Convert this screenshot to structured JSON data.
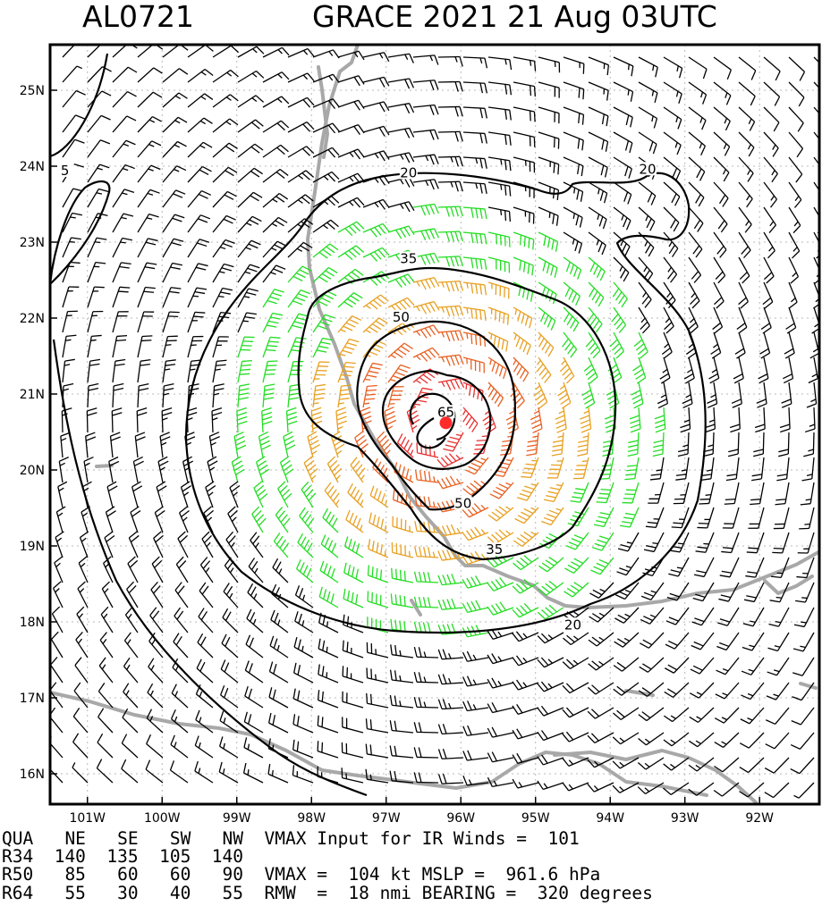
{
  "header": {
    "storm_id": "AL0721",
    "title": "GRACE 2021 21 Aug 03UTC"
  },
  "map": {
    "lon_range": [
      -101.5,
      -91.2
    ],
    "lat_range": [
      15.6,
      25.6
    ],
    "lon_ticks": [
      {
        "lon": -101,
        "label": "101W"
      },
      {
        "lon": -100,
        "label": "100W"
      },
      {
        "lon": -99,
        "label": "99W"
      },
      {
        "lon": -98,
        "label": "98W"
      },
      {
        "lon": -97,
        "label": "97W"
      },
      {
        "lon": -96,
        "label": "96W"
      },
      {
        "lon": -95,
        "label": "95W"
      },
      {
        "lon": -94,
        "label": "94W"
      },
      {
        "lon": -93,
        "label": "93W"
      },
      {
        "lon": -92,
        "label": "92W"
      }
    ],
    "lat_ticks": [
      {
        "lat": 25,
        "label": "25N"
      },
      {
        "lat": 24,
        "label": "24N"
      },
      {
        "lat": 23,
        "label": "23N"
      },
      {
        "lat": 22,
        "label": "22N"
      },
      {
        "lat": 21,
        "label": "21N"
      },
      {
        "lat": 20,
        "label": "20N"
      },
      {
        "lat": 19,
        "label": "19N"
      },
      {
        "lat": 18,
        "label": "18N"
      },
      {
        "lat": 17,
        "label": "17N"
      },
      {
        "lat": 16,
        "label": "16N"
      }
    ],
    "storm_center": {
      "lon": -96.2,
      "lat": 20.62
    },
    "center_color": "#ff2a2a",
    "contour_labels": [
      {
        "value": "5",
        "lon": -101.3,
        "lat": 23.93
      },
      {
        "value": "20",
        "lon": -96.7,
        "lat": 23.9
      },
      {
        "value": "20",
        "lon": -93.5,
        "lat": 23.95
      },
      {
        "value": "35",
        "lon": -96.7,
        "lat": 22.77
      },
      {
        "value": "50",
        "lon": -96.8,
        "lat": 22.0
      },
      {
        "value": "65",
        "lon": -96.2,
        "lat": 20.75
      },
      {
        "value": "50",
        "lon": -95.97,
        "lat": 19.55
      },
      {
        "value": "35",
        "lon": -95.55,
        "lat": 18.94
      },
      {
        "value": "20",
        "lon": -94.5,
        "lat": 17.95
      }
    ],
    "wind_color_scale": [
      {
        "max_kt": 34,
        "color": "#000000"
      },
      {
        "max_kt": 50,
        "color": "#22dd22"
      },
      {
        "max_kt": 64,
        "color": "#e8a020"
      },
      {
        "max_kt": 83,
        "color": "#e86020"
      },
      {
        "max_kt": 999,
        "color": "#e83030"
      }
    ],
    "coast_color": "#a8a8a8"
  },
  "info": {
    "row1": "QUA   NE   SE   SW   NW  VMAX Input for IR Winds =  101",
    "row2": "R34  140  135  105  140",
    "row3": "R50   85   60   60   90  VMAX =  104 kt MSLP =  961.6 hPa",
    "row4": "R64   55   30   40   55  RMW  =  18 nmi BEARING =  320 degrees"
  }
}
